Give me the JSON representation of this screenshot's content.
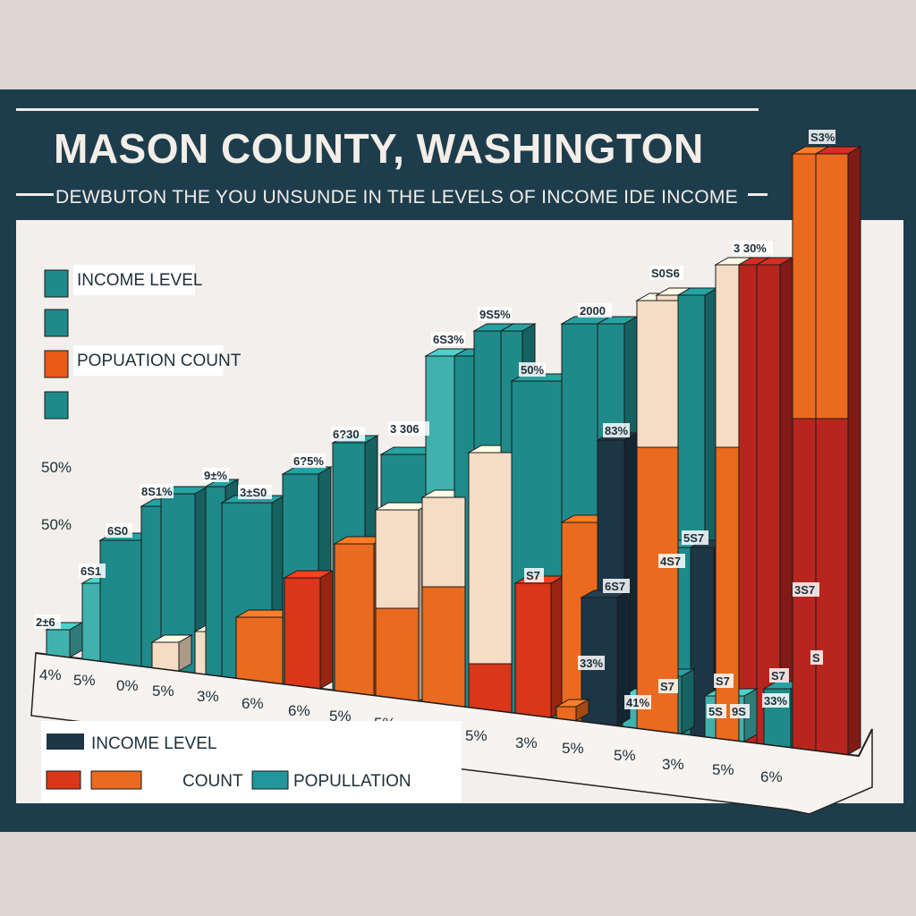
{
  "chart_data": {
    "type": "bar",
    "title": "MASON COUNTY, WASHINGTON",
    "subtitle": "DEWBUTON THE YOU UNSUNDE IN THE LEVELS OF INCOME IDE INCOME",
    "legend_top": [
      {
        "label": "INCOME LEVEL",
        "color": "#1f8a8a"
      },
      {
        "label": "",
        "color": "#1f8a8a"
      },
      {
        "label": "POPUATION COUNT",
        "color": "#ea5a18"
      },
      {
        "label": "",
        "color": "#1f8a8a"
      }
    ],
    "legend_bottom": [
      {
        "label": "INCOME LEVEL",
        "color": "#1d3646"
      },
      {
        "label": "COUNT",
        "colors": [
          "#d9361a",
          "#ea6a1f"
        ]
      },
      {
        "label": "POPULLATION",
        "color": "#20979a"
      }
    ],
    "left_labels": [
      "50%",
      "50%"
    ],
    "categories": [
      "4%",
      "5%",
      "0%",
      "5%",
      "3%",
      "6%",
      "6%",
      "5%",
      "5%",
      "5%",
      "5%",
      "3%",
      "5%",
      "5%",
      "3%",
      "5%",
      "6%"
    ],
    "bar_labels": [
      "2±6",
      "6S1",
      "6S0",
      "8S1%",
      "9±%",
      "3±S0",
      "6?5%",
      "6?30",
      "3 306",
      "6S3%",
      "9S5%",
      "50%",
      "2000",
      "83%",
      "S0S6",
      "3 30%",
      "S3%",
      "S7",
      "6S7",
      "5S7",
      "4S7",
      "S7",
      "33%",
      "41%",
      "S7",
      "5S",
      "9S",
      "S7",
      "3S7",
      "S",
      "33%"
    ],
    "colors": {
      "teal": "#1f8a8a",
      "light_teal": "#41b1ad",
      "red": "#d9361a",
      "orange": "#ea6a1f",
      "cream": "#f5dcc4",
      "navy": "#1d3646",
      "crimson": "#b7261e"
    }
  }
}
